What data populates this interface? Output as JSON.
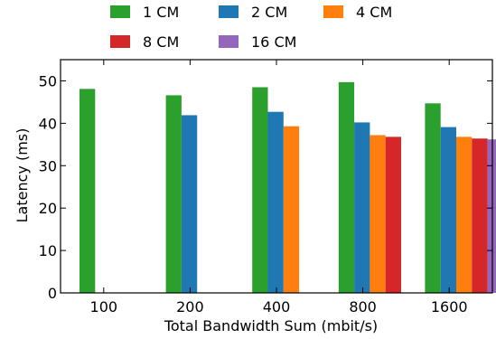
{
  "chart_data": {
    "type": "bar",
    "title": "",
    "xlabel": "Total Bandwidth Sum (mbit/s)",
    "ylabel": "Latency (ms)",
    "categories": [
      "100",
      "200",
      "400",
      "800",
      "1600"
    ],
    "ylim": [
      0,
      55
    ],
    "yticks": [
      0,
      10,
      20,
      30,
      40,
      50
    ],
    "grid": false,
    "legend_position": "top",
    "series": [
      {
        "name": "1 CM",
        "color": "#2ca02c",
        "values": [
          48.1,
          46.6,
          48.5,
          49.7,
          44.7
        ]
      },
      {
        "name": "2 CM",
        "color": "#1f77b4",
        "values": [
          null,
          41.9,
          42.7,
          40.2,
          39.1
        ]
      },
      {
        "name": "4 CM",
        "color": "#ff7f0e",
        "values": [
          null,
          null,
          39.3,
          37.2,
          36.8
        ]
      },
      {
        "name": "8 CM",
        "color": "#d62728",
        "values": [
          null,
          null,
          null,
          36.8,
          36.4
        ]
      },
      {
        "name": "16 CM",
        "color": "#9467bd",
        "values": [
          null,
          null,
          null,
          null,
          36.2
        ]
      }
    ]
  }
}
